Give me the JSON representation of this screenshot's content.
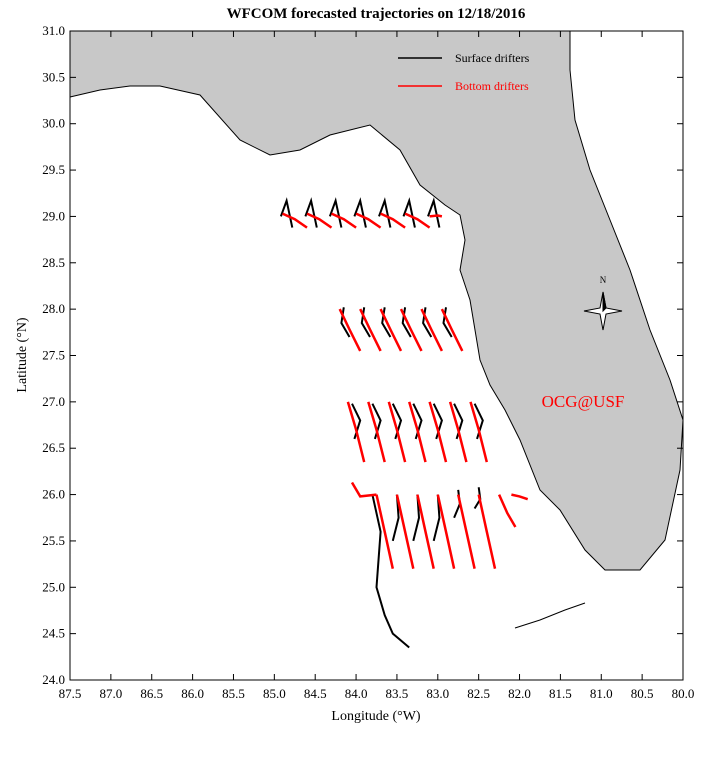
{
  "chart_data": {
    "type": "trajectory",
    "title": "WFCOM forecasted trajectories on 12/18/2016",
    "xlabel": "Longitude (°W)",
    "ylabel": "Latitude (°N)",
    "annotation": "OCG@USF",
    "compass": "N",
    "xlim": [
      87.5,
      80.0
    ],
    "ylim": [
      24.0,
      31.0
    ],
    "xticks": [
      87.5,
      {
        "value": 87,
        "label": "87.0"
      },
      86.5,
      {
        "value": 86,
        "label": "86.0"
      },
      85.5,
      {
        "value": 85,
        "label": "85.0"
      },
      84.5,
      {
        "value": 84,
        "label": "84.0"
      },
      83.5,
      {
        "value": 83,
        "label": "83.0"
      },
      82.5,
      {
        "value": 82,
        "label": "82.0"
      },
      81.5,
      {
        "value": 81,
        "label": "81.0"
      },
      80.5,
      {
        "value": 80,
        "label": "80.0"
      }
    ],
    "yticks": [
      {
        "value": 24,
        "label": "24.0"
      },
      24.5,
      {
        "value": 25,
        "label": "25.0"
      },
      25.5,
      {
        "value": 26,
        "label": "26.0"
      },
      26.5,
      {
        "value": 27,
        "label": "27.0"
      },
      27.5,
      {
        "value": 28,
        "label": "28.0"
      },
      28.5,
      {
        "value": 29,
        "label": "29.0"
      },
      29.5,
      {
        "value": 30,
        "label": "30.0"
      },
      30.5,
      {
        "value": 31,
        "label": "31.0"
      }
    ],
    "series": [
      {
        "name": "Surface drifters",
        "color": "#000000",
        "tracks": [
          {
            "x": [
              84.92,
              84.85,
              84.78
            ],
            "y": [
              29.0,
              29.17,
              28.88
            ]
          },
          {
            "x": [
              84.62,
              84.55,
              84.48
            ],
            "y": [
              29.0,
              29.17,
              28.88
            ]
          },
          {
            "x": [
              84.32,
              84.25,
              84.18
            ],
            "y": [
              29.0,
              29.17,
              28.88
            ]
          },
          {
            "x": [
              84.02,
              83.95,
              83.88
            ],
            "y": [
              29.0,
              29.17,
              28.88
            ]
          },
          {
            "x": [
              83.72,
              83.65,
              83.58
            ],
            "y": [
              29.0,
              29.17,
              28.88
            ]
          },
          {
            "x": [
              83.42,
              83.35,
              83.28
            ],
            "y": [
              29.0,
              29.17,
              28.88
            ]
          },
          {
            "x": [
              83.12,
              83.05,
              82.98
            ],
            "y": [
              29.0,
              29.17,
              28.88
            ]
          },
          {
            "x": [
              84.15,
              84.18,
              84.08
            ],
            "y": [
              28.02,
              27.85,
              27.7
            ]
          },
          {
            "x": [
              83.9,
              83.93,
              83.83
            ],
            "y": [
              28.02,
              27.85,
              27.7
            ]
          },
          {
            "x": [
              83.65,
              83.68,
              83.58
            ],
            "y": [
              28.02,
              27.85,
              27.7
            ]
          },
          {
            "x": [
              83.4,
              83.43,
              83.33
            ],
            "y": [
              28.02,
              27.85,
              27.7
            ]
          },
          {
            "x": [
              83.15,
              83.18,
              83.08
            ],
            "y": [
              28.02,
              27.85,
              27.7
            ]
          },
          {
            "x": [
              82.9,
              82.93,
              82.83
            ],
            "y": [
              28.02,
              27.85,
              27.7
            ]
          },
          {
            "x": [
              84.05,
              83.95,
              84.02
            ],
            "y": [
              26.98,
              26.8,
              26.6
            ]
          },
          {
            "x": [
              83.8,
              83.7,
              83.77
            ],
            "y": [
              26.98,
              26.8,
              26.6
            ]
          },
          {
            "x": [
              83.55,
              83.45,
              83.52
            ],
            "y": [
              26.98,
              26.8,
              26.6
            ]
          },
          {
            "x": [
              83.3,
              83.2,
              83.27
            ],
            "y": [
              26.98,
              26.8,
              26.6
            ]
          },
          {
            "x": [
              83.05,
              82.95,
              83.02
            ],
            "y": [
              26.98,
              26.8,
              26.6
            ]
          },
          {
            "x": [
              82.8,
              82.7,
              82.77
            ],
            "y": [
              26.98,
              26.8,
              26.6
            ]
          },
          {
            "x": [
              82.55,
              82.45,
              82.52
            ],
            "y": [
              26.98,
              26.8,
              26.6
            ]
          },
          {
            "x": [
              83.8,
              83.7,
              83.75,
              83.65,
              83.55,
              83.35
            ],
            "y": [
              26.0,
              25.6,
              25.0,
              24.7,
              24.5,
              24.35
            ]
          },
          {
            "x": [
              83.5,
              83.48,
              83.55
            ],
            "y": [
              26.0,
              25.75,
              25.5
            ]
          },
          {
            "x": [
              83.25,
              83.23,
              83.3
            ],
            "y": [
              26.0,
              25.75,
              25.5
            ]
          },
          {
            "x": [
              83.0,
              82.98,
              83.05
            ],
            "y": [
              26.0,
              25.75,
              25.5
            ]
          },
          {
            "x": [
              82.75,
              82.73,
              82.8
            ],
            "y": [
              26.05,
              25.9,
              25.75
            ]
          },
          {
            "x": [
              82.5,
              82.48,
              82.55
            ],
            "y": [
              26.08,
              25.95,
              25.85
            ]
          }
        ]
      },
      {
        "name": "Bottom drifters",
        "color": "#ff0000",
        "tracks": [
          {
            "x": [
              84.9,
              84.75,
              84.6
            ],
            "y": [
              29.03,
              28.97,
              28.88
            ]
          },
          {
            "x": [
              84.6,
              84.45,
              84.3
            ],
            "y": [
              29.03,
              28.97,
              28.88
            ]
          },
          {
            "x": [
              84.3,
              84.15,
              84.0
            ],
            "y": [
              29.03,
              28.97,
              28.88
            ]
          },
          {
            "x": [
              84.0,
              83.85,
              83.7
            ],
            "y": [
              29.03,
              28.97,
              28.88
            ]
          },
          {
            "x": [
              83.7,
              83.55,
              83.4
            ],
            "y": [
              29.03,
              28.97,
              28.88
            ]
          },
          {
            "x": [
              83.4,
              83.25,
              83.1
            ],
            "y": [
              29.03,
              28.97,
              28.88
            ]
          },
          {
            "x": [
              83.1,
              83.0,
              82.95
            ],
            "y": [
              29.0,
              29.01,
              29.0
            ]
          },
          {
            "x": [
              84.2,
              84.08,
              83.95
            ],
            "y": [
              28.0,
              27.78,
              27.55
            ]
          },
          {
            "x": [
              83.95,
              83.83,
              83.7
            ],
            "y": [
              28.0,
              27.78,
              27.55
            ]
          },
          {
            "x": [
              83.7,
              83.58,
              83.45
            ],
            "y": [
              28.0,
              27.78,
              27.55
            ]
          },
          {
            "x": [
              83.45,
              83.33,
              83.2
            ],
            "y": [
              28.0,
              27.78,
              27.55
            ]
          },
          {
            "x": [
              83.2,
              83.08,
              82.95
            ],
            "y": [
              28.0,
              27.78,
              27.55
            ]
          },
          {
            "x": [
              82.95,
              82.83,
              82.7
            ],
            "y": [
              28.0,
              27.78,
              27.55
            ]
          },
          {
            "x": [
              84.1,
              84.0,
              83.9
            ],
            "y": [
              27.0,
              26.7,
              26.35
            ]
          },
          {
            "x": [
              83.85,
              83.75,
              83.65
            ],
            "y": [
              27.0,
              26.7,
              26.35
            ]
          },
          {
            "x": [
              83.6,
              83.5,
              83.4
            ],
            "y": [
              27.0,
              26.7,
              26.35
            ]
          },
          {
            "x": [
              83.35,
              83.25,
              83.15
            ],
            "y": [
              27.0,
              26.7,
              26.35
            ]
          },
          {
            "x": [
              83.1,
              83.0,
              82.9
            ],
            "y": [
              27.0,
              26.7,
              26.35
            ]
          },
          {
            "x": [
              82.85,
              82.75,
              82.65
            ],
            "y": [
              27.0,
              26.7,
              26.35
            ]
          },
          {
            "x": [
              82.6,
              82.5,
              82.4
            ],
            "y": [
              27.0,
              26.7,
              26.35
            ]
          },
          {
            "x": [
              84.05,
              83.95,
              83.75
            ],
            "y": [
              26.13,
              25.98,
              26.0
            ]
          },
          {
            "x": [
              83.75,
              83.65,
              83.55
            ],
            "y": [
              26.0,
              25.6,
              25.2
            ]
          },
          {
            "x": [
              83.5,
              83.4,
              83.3
            ],
            "y": [
              26.0,
              25.6,
              25.2
            ]
          },
          {
            "x": [
              83.25,
              83.15,
              83.05
            ],
            "y": [
              26.0,
              25.6,
              25.2
            ]
          },
          {
            "x": [
              83.0,
              82.9,
              82.8
            ],
            "y": [
              26.0,
              25.6,
              25.2
            ]
          },
          {
            "x": [
              82.75,
              82.65,
              82.55
            ],
            "y": [
              26.0,
              25.6,
              25.2
            ]
          },
          {
            "x": [
              82.5,
              82.4,
              82.3
            ],
            "y": [
              26.0,
              25.6,
              25.2
            ]
          },
          {
            "x": [
              82.25,
              82.15,
              82.05
            ],
            "y": [
              26.0,
              25.8,
              25.65
            ]
          },
          {
            "x": [
              82.1,
              82.0,
              81.9
            ],
            "y": [
              26.0,
              25.98,
              25.95
            ]
          }
        ]
      }
    ]
  }
}
